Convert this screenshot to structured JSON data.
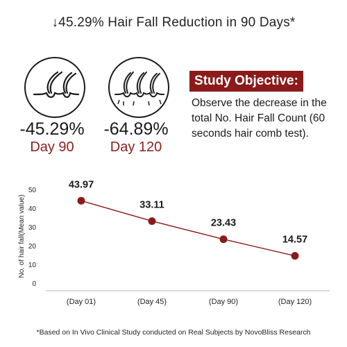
{
  "headline": "↓45.29% Hair Fall Reduction in 90 Days*",
  "stats": [
    {
      "percent": "-45.29%",
      "day": "Day 90"
    },
    {
      "percent": "-64.89%",
      "day": "Day 120"
    }
  ],
  "icons": [
    "hair-follicles-icon",
    "hair-follicles-multiple-icon"
  ],
  "objective": {
    "title": "Study Objective:",
    "text": "Observe the decrease in the total No. Hair Fall Count (60 seconds hair comb test)."
  },
  "colors": {
    "accent": "#8b1a1a",
    "line": "#8b1a1a",
    "text": "#1a1a1a"
  },
  "chart_data": {
    "type": "line",
    "categories": [
      "(Day 01)",
      "(Day 45)",
      "(Day 90)",
      "(Day 120)"
    ],
    "values": [
      43.97,
      33.11,
      23.43,
      14.57
    ],
    "data_labels": [
      "43.97",
      "33.11",
      "23.43",
      "14.57"
    ],
    "ylabel": "No. of hair fall(Mean value)",
    "xlabel": "",
    "ylim": [
      0,
      50
    ],
    "yticks": [
      0,
      10,
      20,
      30,
      40,
      50
    ],
    "grid": false
  },
  "footnote": "*Based on In Vivo Clinical Study conducted on Real Subjects by NovoBliss Research"
}
